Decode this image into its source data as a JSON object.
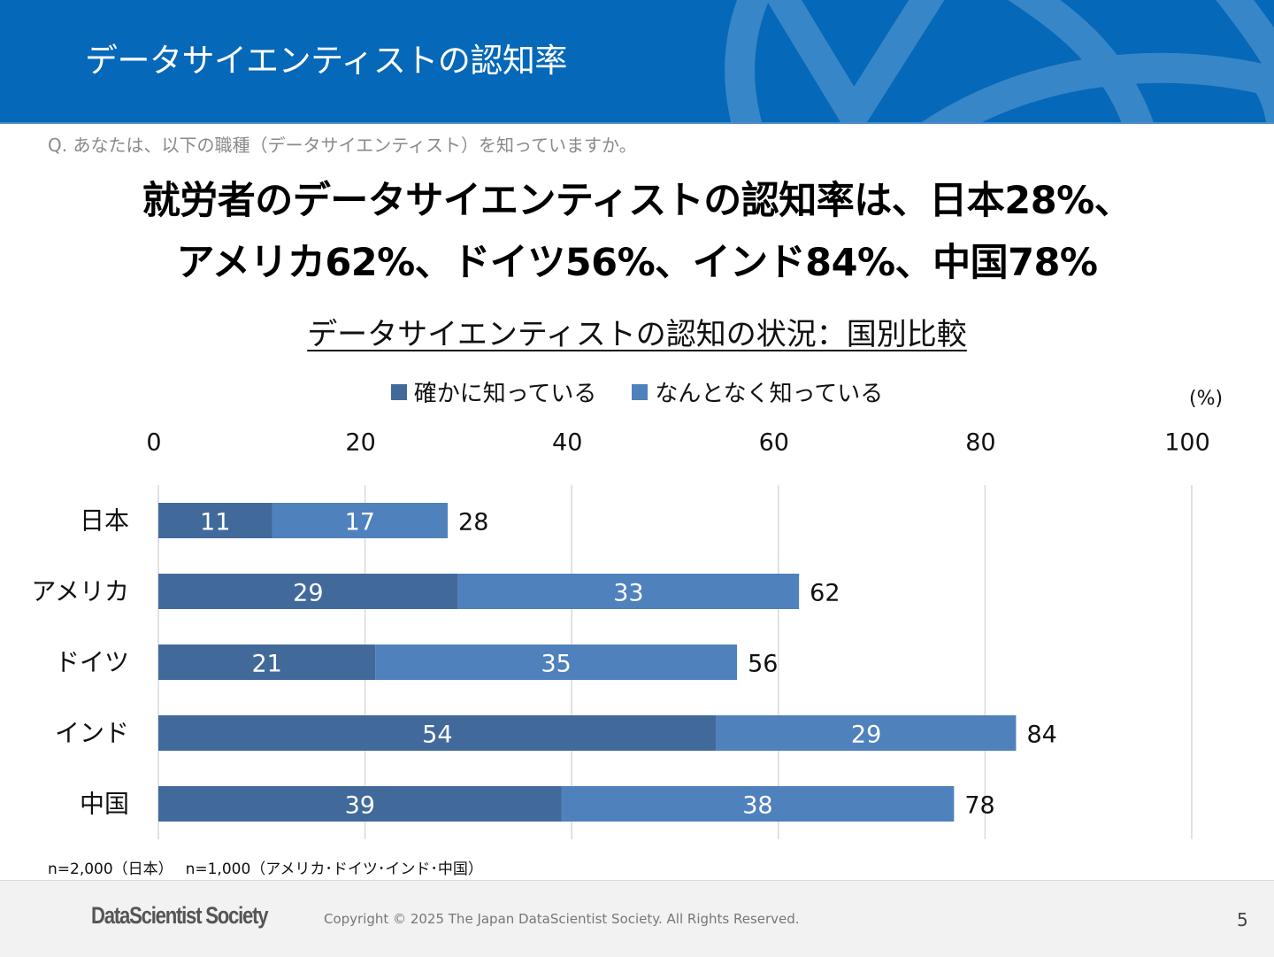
{
  "header": {
    "title": "データサイエンティストの認知率"
  },
  "question": "Q. あなたは、以下の職種（データサイエンティスト）を知っていますか。",
  "headline": {
    "line1": "就労者のデータサイエンティストの認知率は、日本28%、",
    "line2": "アメリカ62%、ドイツ56%、インド84%、中国78%"
  },
  "colors": {
    "header_bg": "#0568b8",
    "series_definite": "#416a9b",
    "series_vague": "#4f81bd",
    "gridline": "#d9d9d9"
  },
  "chart_data": {
    "type": "bar",
    "orientation": "horizontal",
    "stacked": true,
    "title": "データサイエンティストの認知の状況：国別比較",
    "unit_label": "(%)",
    "categories": [
      "日本",
      "アメリカ",
      "ドイツ",
      "インド",
      "中国"
    ],
    "series": [
      {
        "name": "確かに知っている",
        "values": [
          11,
          29,
          21,
          54,
          39
        ],
        "color": "#416a9b"
      },
      {
        "name": "なんとなく知っている",
        "values": [
          17,
          33,
          35,
          29,
          38
        ],
        "color": "#4f81bd"
      }
    ],
    "totals": [
      28,
      62,
      56,
      84,
      78
    ],
    "xlim": [
      0,
      100
    ],
    "xticks": [
      0,
      20,
      40,
      60,
      80,
      100
    ],
    "x_axis_position": "top",
    "grid": true,
    "legend_position": "top"
  },
  "note": "n=2,000（日本）　 n=1,000（アメリカ･ドイツ･インド･中国）",
  "footer": {
    "logo": "DataScientist Society",
    "copyright": "Copyright © 2025 The Japan DataScientist Society. All Rights Reserved.",
    "page_number": "5"
  }
}
